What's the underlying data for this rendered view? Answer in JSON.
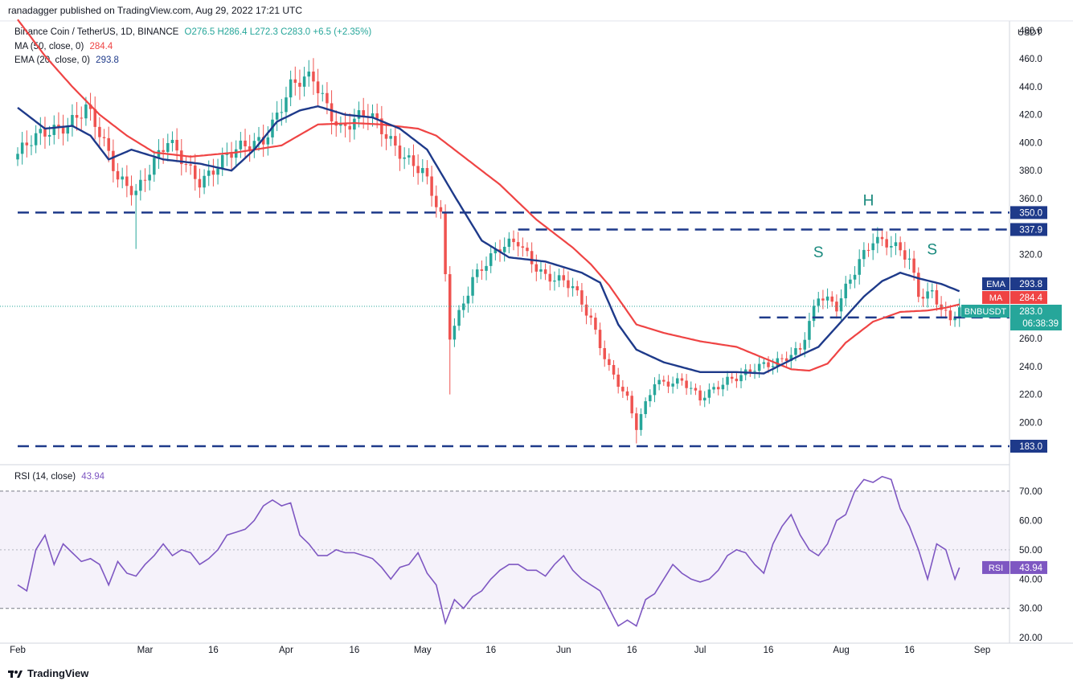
{
  "header": {
    "publisher": "ranadagger published on TradingView.com, Aug 29, 2022 17:21 UTC"
  },
  "legend": {
    "symbol": "Binance Coin / TetherUS, 1D, BINANCE",
    "ohlc": "O276.5  H286.4  L272.3  C283.0  +6.5 (+2.35%)",
    "ma_label": "MA (50, close, 0)",
    "ma_value": "284.4",
    "ema_label": "EMA (20, close, 0)",
    "ema_value": "293.8",
    "rsi_label": "RSI (14, close)",
    "rsi_value": "43.94"
  },
  "axis": {
    "currency": "USDT",
    "price_ticks": [
      200,
      220,
      240,
      260,
      280,
      300,
      320,
      340,
      360,
      380,
      400,
      420,
      440,
      460,
      480
    ],
    "rsi_ticks": [
      20,
      30,
      40,
      50,
      60,
      70
    ],
    "x_ticks": [
      {
        "label": "Feb",
        "t": 0
      },
      {
        "label": "Mar",
        "t": 28
      },
      {
        "label": "16",
        "t": 43
      },
      {
        "label": "Apr",
        "t": 59
      },
      {
        "label": "16",
        "t": 74
      },
      {
        "label": "May",
        "t": 89
      },
      {
        "label": "16",
        "t": 104
      },
      {
        "label": "Jun",
        "t": 120
      },
      {
        "label": "16",
        "t": 135
      },
      {
        "label": "Jul",
        "t": 150
      },
      {
        "label": "16",
        "t": 165
      },
      {
        "label": "Aug",
        "t": 181
      },
      {
        "label": "16",
        "t": 196
      },
      {
        "label": "Sep",
        "t": 212
      }
    ]
  },
  "price_tags": {
    "ema": {
      "label": "EMA",
      "value": "293.8",
      "color": "#1e3a8a"
    },
    "ma": {
      "label": "MA",
      "value": "284.4",
      "color": "#ef4444"
    },
    "last": {
      "label": "BNBUSDT",
      "value": "283.0",
      "countdown": "06:38:39",
      "color": "#26a69a"
    },
    "rsi": {
      "label": "RSI",
      "value": "43.94",
      "color": "#7e57c2"
    }
  },
  "levels": [
    {
      "price": 350.0,
      "label": "350.0",
      "start_t": 0
    },
    {
      "price": 337.9,
      "label": "337.9",
      "start_t": 110
    },
    {
      "price": 275.0,
      "label": "275.0",
      "start_t": 163
    },
    {
      "price": 183.0,
      "label": "183.0",
      "start_t": 0
    }
  ],
  "annotations": [
    {
      "text": "S",
      "t": 176,
      "price": 318
    },
    {
      "text": "H",
      "t": 187,
      "price": 355
    },
    {
      "text": "S",
      "t": 201,
      "price": 320
    }
  ],
  "brand": "TradingView",
  "colors": {
    "up": "#26a69a",
    "down": "#ef5350",
    "ema": "#1e3a8a",
    "ma": "#ef4444",
    "rsi": "#7e57c2",
    "level": "#1e3a8a"
  },
  "chart_data": {
    "type": "candlestick",
    "title": "Binance Coin / TetherUS, 1D, BINANCE",
    "ylim": [
      183,
      483
    ],
    "rsi_bands": [
      30,
      70
    ],
    "price_keypoints": [
      [
        0,
        392
      ],
      [
        8,
        410
      ],
      [
        15,
        425
      ],
      [
        22,
        375
      ],
      [
        26,
        368
      ],
      [
        33,
        398
      ],
      [
        40,
        375
      ],
      [
        47,
        390
      ],
      [
        54,
        405
      ],
      [
        60,
        438
      ],
      [
        65,
        445
      ],
      [
        71,
        412
      ],
      [
        77,
        418
      ],
      [
        83,
        400
      ],
      [
        89,
        378
      ],
      [
        93,
        345
      ],
      [
        95,
        262
      ],
      [
        100,
        305
      ],
      [
        106,
        322
      ],
      [
        110,
        330
      ],
      [
        116,
        305
      ],
      [
        122,
        295
      ],
      [
        126,
        275
      ],
      [
        130,
        240
      ],
      [
        134,
        215
      ],
      [
        136,
        195
      ],
      [
        140,
        230
      ],
      [
        146,
        230
      ],
      [
        150,
        215
      ],
      [
        156,
        232
      ],
      [
        162,
        238
      ],
      [
        166,
        240
      ],
      [
        172,
        255
      ],
      [
        176,
        290
      ],
      [
        180,
        280
      ],
      [
        185,
        318
      ],
      [
        188,
        333
      ],
      [
        192,
        325
      ],
      [
        196,
        315
      ],
      [
        198,
        292
      ],
      [
        201,
        295
      ],
      [
        205,
        272
      ],
      [
        207,
        280
      ]
    ],
    "ema_keypoints": [
      [
        0,
        425
      ],
      [
        6,
        410
      ],
      [
        12,
        412
      ],
      [
        16,
        405
      ],
      [
        20,
        388
      ],
      [
        25,
        395
      ],
      [
        32,
        388
      ],
      [
        40,
        385
      ],
      [
        47,
        380
      ],
      [
        52,
        395
      ],
      [
        57,
        415
      ],
      [
        62,
        423
      ],
      [
        66,
        426
      ],
      [
        72,
        420
      ],
      [
        78,
        418
      ],
      [
        84,
        410
      ],
      [
        90,
        395
      ],
      [
        96,
        362
      ],
      [
        102,
        330
      ],
      [
        108,
        318
      ],
      [
        116,
        315
      ],
      [
        124,
        307
      ],
      [
        128,
        300
      ],
      [
        132,
        270
      ],
      [
        136,
        252
      ],
      [
        142,
        243
      ],
      [
        150,
        236
      ],
      [
        158,
        236
      ],
      [
        164,
        235
      ],
      [
        172,
        248
      ],
      [
        176,
        254
      ],
      [
        181,
        272
      ],
      [
        186,
        290
      ],
      [
        190,
        301
      ],
      [
        194,
        307
      ],
      [
        198,
        303
      ],
      [
        203,
        299
      ],
      [
        207,
        293.8
      ]
    ],
    "ma_keypoints": [
      [
        0,
        488
      ],
      [
        6,
        462
      ],
      [
        12,
        440
      ],
      [
        18,
        420
      ],
      [
        24,
        405
      ],
      [
        30,
        393
      ],
      [
        38,
        390
      ],
      [
        48,
        393
      ],
      [
        58,
        398
      ],
      [
        66,
        413
      ],
      [
        74,
        414
      ],
      [
        80,
        413
      ],
      [
        88,
        410
      ],
      [
        92,
        405
      ],
      [
        98,
        390
      ],
      [
        106,
        370
      ],
      [
        114,
        345
      ],
      [
        122,
        325
      ],
      [
        126,
        313
      ],
      [
        130,
        298
      ],
      [
        136,
        270
      ],
      [
        142,
        264
      ],
      [
        150,
        258
      ],
      [
        158,
        254
      ],
      [
        164,
        246
      ],
      [
        170,
        238
      ],
      [
        174,
        237
      ],
      [
        178,
        242
      ],
      [
        182,
        257
      ],
      [
        188,
        272
      ],
      [
        194,
        279
      ],
      [
        200,
        280
      ],
      [
        204,
        282
      ],
      [
        207,
        284.4
      ]
    ],
    "rsi_keypoints": [
      [
        0,
        38
      ],
      [
        2,
        36
      ],
      [
        4,
        50
      ],
      [
        6,
        55
      ],
      [
        8,
        45
      ],
      [
        10,
        52
      ],
      [
        12,
        49
      ],
      [
        14,
        46
      ],
      [
        16,
        47
      ],
      [
        18,
        45
      ],
      [
        20,
        38
      ],
      [
        22,
        46
      ],
      [
        24,
        42
      ],
      [
        26,
        41
      ],
      [
        28,
        45
      ],
      [
        30,
        48
      ],
      [
        32,
        52
      ],
      [
        34,
        48
      ],
      [
        36,
        50
      ],
      [
        38,
        49
      ],
      [
        40,
        45
      ],
      [
        42,
        47
      ],
      [
        44,
        50
      ],
      [
        46,
        55
      ],
      [
        48,
        56
      ],
      [
        50,
        57
      ],
      [
        52,
        60
      ],
      [
        54,
        65
      ],
      [
        56,
        67
      ],
      [
        58,
        65
      ],
      [
        60,
        66
      ],
      [
        62,
        55
      ],
      [
        64,
        52
      ],
      [
        66,
        48
      ],
      [
        68,
        48
      ],
      [
        70,
        50
      ],
      [
        72,
        49
      ],
      [
        74,
        49
      ],
      [
        76,
        48
      ],
      [
        78,
        47
      ],
      [
        80,
        44
      ],
      [
        82,
        40
      ],
      [
        84,
        44
      ],
      [
        86,
        45
      ],
      [
        88,
        49
      ],
      [
        90,
        42
      ],
      [
        92,
        38
      ],
      [
        94,
        25
      ],
      [
        96,
        33
      ],
      [
        98,
        30
      ],
      [
        100,
        34
      ],
      [
        102,
        36
      ],
      [
        104,
        40
      ],
      [
        106,
        43
      ],
      [
        108,
        45
      ],
      [
        110,
        45
      ],
      [
        112,
        43
      ],
      [
        114,
        43
      ],
      [
        116,
        41
      ],
      [
        118,
        45
      ],
      [
        120,
        48
      ],
      [
        122,
        43
      ],
      [
        124,
        40
      ],
      [
        126,
        38
      ],
      [
        128,
        36
      ],
      [
        130,
        30
      ],
      [
        132,
        24
      ],
      [
        134,
        26
      ],
      [
        136,
        24
      ],
      [
        138,
        33
      ],
      [
        140,
        35
      ],
      [
        142,
        40
      ],
      [
        144,
        45
      ],
      [
        146,
        42
      ],
      [
        148,
        40
      ],
      [
        150,
        39
      ],
      [
        152,
        40
      ],
      [
        154,
        43
      ],
      [
        156,
        48
      ],
      [
        158,
        50
      ],
      [
        160,
        49
      ],
      [
        162,
        45
      ],
      [
        164,
        42
      ],
      [
        166,
        52
      ],
      [
        168,
        58
      ],
      [
        170,
        62
      ],
      [
        172,
        55
      ],
      [
        174,
        50
      ],
      [
        176,
        48
      ],
      [
        178,
        52
      ],
      [
        180,
        60
      ],
      [
        182,
        62
      ],
      [
        184,
        70
      ],
      [
        186,
        74
      ],
      [
        188,
        73
      ],
      [
        190,
        75
      ],
      [
        192,
        74
      ],
      [
        194,
        64
      ],
      [
        196,
        58
      ],
      [
        198,
        50
      ],
      [
        200,
        40
      ],
      [
        202,
        52
      ],
      [
        204,
        50
      ],
      [
        206,
        40
      ],
      [
        207,
        43.94
      ]
    ]
  }
}
